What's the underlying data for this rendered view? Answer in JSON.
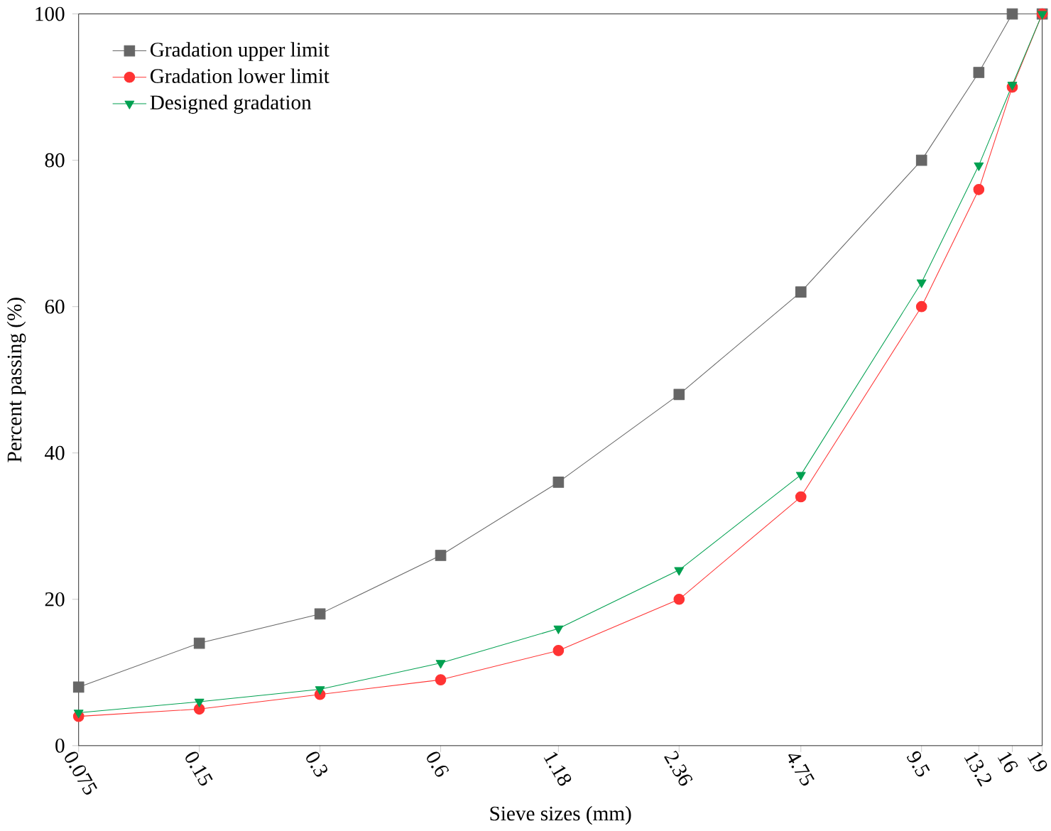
{
  "chart_data": {
    "type": "line",
    "xlabel": "Sieve sizes (mm)",
    "ylabel": "Percent passing (%)",
    "log": "x",
    "x": [
      0.075,
      0.15,
      0.3,
      0.6,
      1.18,
      2.36,
      4.75,
      9.5,
      13.2,
      16,
      19
    ],
    "xlim": [
      0.075,
      19
    ],
    "xticks": [
      0.075,
      0.15,
      0.3,
      0.6,
      1.18,
      2.36,
      4.75,
      9.5,
      13.2,
      16,
      19
    ],
    "ylim": [
      0,
      100
    ],
    "yticks": [
      0,
      20,
      40,
      60,
      80,
      100
    ],
    "legend": "top left",
    "grid": false,
    "series": [
      {
        "name": "Gradation upper limit",
        "color": "#666666",
        "marker": "square",
        "values": [
          8,
          14,
          18,
          26,
          36,
          48,
          62,
          80,
          92,
          100,
          100
        ]
      },
      {
        "name": "Gradation lower limit",
        "color": "#ff3333",
        "marker": "circle",
        "values": [
          4,
          5,
          7,
          9,
          13,
          20,
          34,
          60,
          76,
          90,
          100
        ]
      },
      {
        "name": "Designed gradation",
        "color": "#00a050",
        "marker": "triangle",
        "values": [
          4.5,
          6,
          7.7,
          11.3,
          16,
          24,
          37,
          63.3,
          79.3,
          90.3,
          100
        ]
      }
    ]
  }
}
